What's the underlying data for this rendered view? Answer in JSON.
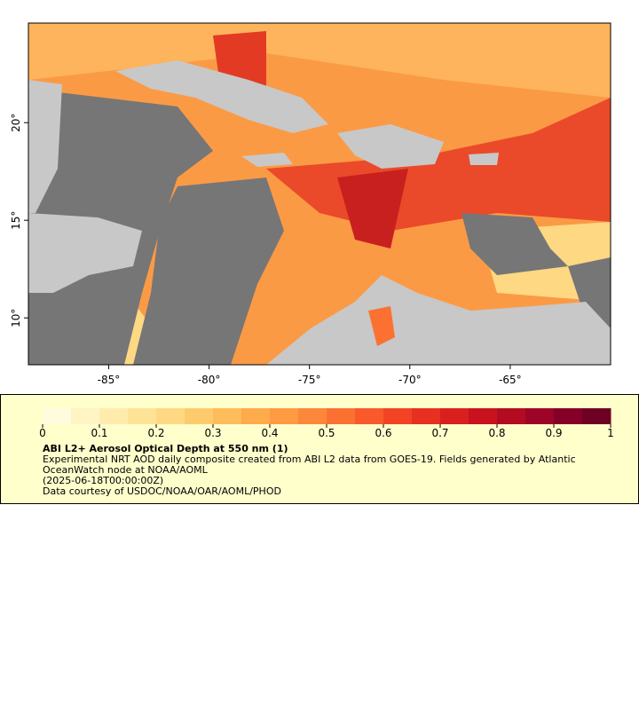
{
  "chart_data": {
    "type": "map",
    "xlim": [
      -89,
      -60
    ],
    "ylim": [
      7.6,
      25.1
    ],
    "xticks": [
      {
        "value": -85,
        "label": "-85°"
      },
      {
        "value": -80,
        "label": "-80°"
      },
      {
        "value": -75,
        "label": "-75°"
      },
      {
        "value": -70,
        "label": "-70°"
      },
      {
        "value": -65,
        "label": "-65°"
      }
    ],
    "yticks": [
      {
        "value": 10,
        "label": "10°"
      },
      {
        "value": 15,
        "label": "15°"
      },
      {
        "value": 20,
        "label": "20°"
      }
    ],
    "colorbar": {
      "range": [
        0,
        1
      ],
      "ticks": [
        0,
        0.1,
        0.2,
        0.3,
        0.4,
        0.5,
        0.6,
        0.7,
        0.8,
        0.9,
        1
      ],
      "colors": [
        "#fffbdc",
        "#fff4c4",
        "#ffecad",
        "#fee397",
        "#fed882",
        "#fecb6c",
        "#febc5a",
        "#fdab4b",
        "#fd9a42",
        "#fc873a",
        "#fb7132",
        "#f95a2b",
        "#f24325",
        "#e73020",
        "#d9201e",
        "#c8131e",
        "#b30b22",
        "#9c0526",
        "#850026",
        "#6e0023"
      ]
    },
    "title": "ABI L2+ Aerosol Optical Depth at 550 nm (1)",
    "description": "Experimental NRT AOD daily composite created from ABI L2 data from GOES-19. Fields generated by Atlantic OceanWatch node at NOAA/AOML",
    "time": "(2025-06-18T00:00:00Z)",
    "credit": "Data courtesy of USDOC/NOAA/OAR/AOML/PHOD"
  }
}
